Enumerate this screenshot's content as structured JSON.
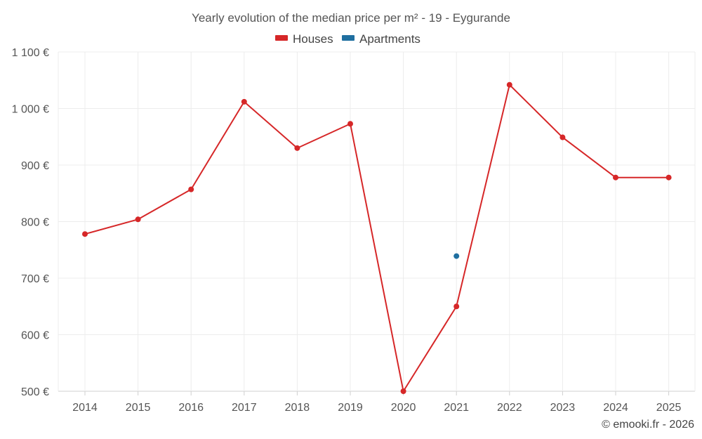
{
  "chart_data": {
    "type": "line",
    "title": "Yearly evolution of the median price per m² - 19 - Eygurande",
    "xlabel": "",
    "ylabel": "",
    "categories": [
      "2014",
      "2015",
      "2016",
      "2017",
      "2018",
      "2019",
      "2020",
      "2021",
      "2022",
      "2023",
      "2024",
      "2025"
    ],
    "ylim": [
      500,
      1100
    ],
    "yticks": [
      500,
      600,
      700,
      800,
      900,
      1000,
      1100
    ],
    "ytick_labels": [
      "500 €",
      "600 €",
      "700 €",
      "800 €",
      "900 €",
      "1 000 €",
      "1 100 €"
    ],
    "grid": true,
    "legend_position": "top-center",
    "series": [
      {
        "name": "Houses",
        "color": "#d62728",
        "values": [
          778,
          804,
          857,
          1012,
          930,
          973,
          500,
          650,
          1042,
          949,
          878,
          878
        ]
      },
      {
        "name": "Apartments",
        "color": "#1f6fa0",
        "values": [
          null,
          null,
          null,
          null,
          null,
          null,
          null,
          739,
          null,
          null,
          null,
          null
        ]
      }
    ],
    "credit": "© emooki.fr - 2026"
  }
}
